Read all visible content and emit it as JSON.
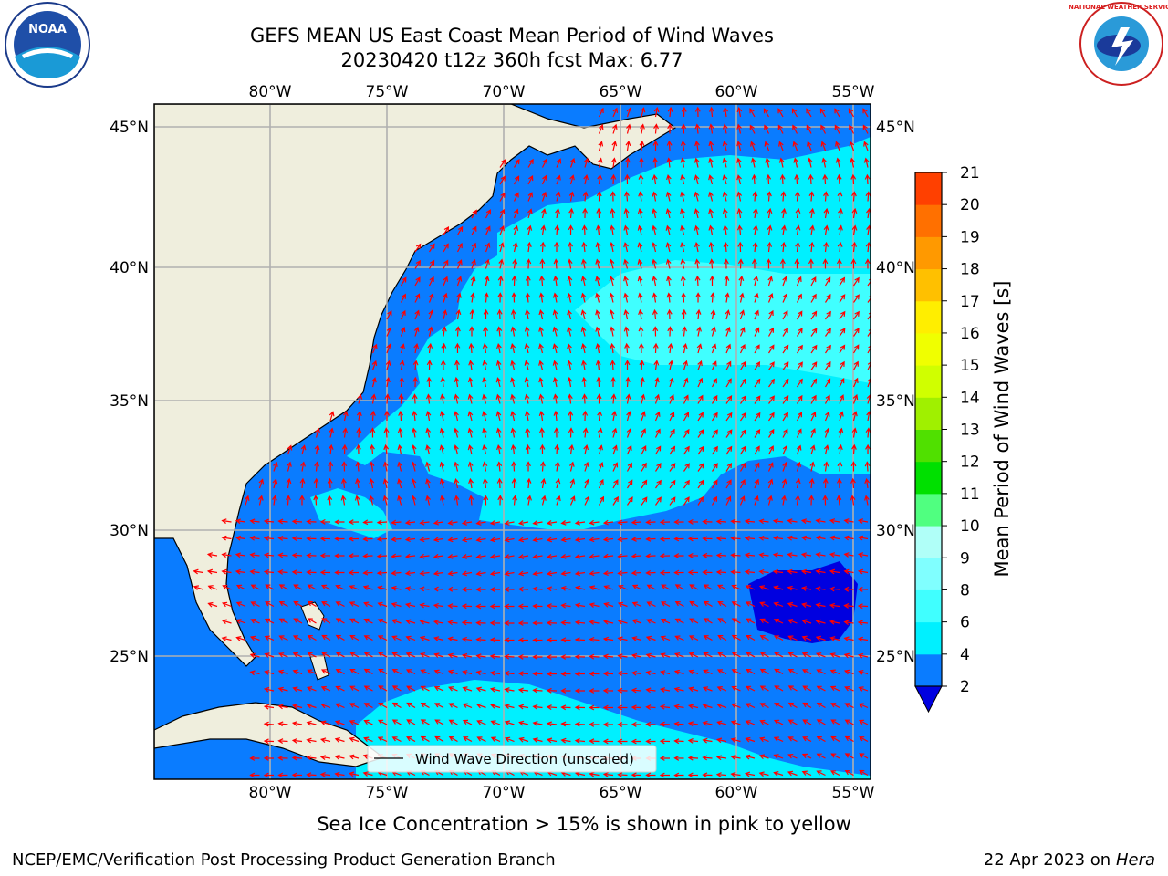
{
  "title_line1": "GEFS MEAN US East Coast Mean Period of Wind Waves",
  "title_line2": "20230420 t12z 360h fcst   Max: 6.77",
  "subtitle": "Sea Ice Concentration > 15% is shown in pink to yellow",
  "footer_left": "NCEP/EMC/Verification Post Processing Product Generation Branch",
  "footer_date": "22 Apr 2023 on ",
  "footer_host": "Hera",
  "legend_label": "Wind Wave Direction (unscaled)",
  "colorbar_label": "Mean Period of Wind Waves [s]",
  "logo_left": "NOAA",
  "logo_right": "NATIONAL WEATHER SERVICE",
  "lon_labels": [
    "80°W",
    "75°W",
    "70°W",
    "65°W",
    "60°W",
    "55°W"
  ],
  "lat_labels": [
    "45°N",
    "40°N",
    "35°N",
    "30°N",
    "25°N"
  ],
  "colorbar_ticks": [
    "2",
    "4",
    "6",
    "8",
    "9",
    "10",
    "11",
    "12",
    "13",
    "14",
    "15",
    "16",
    "17",
    "18",
    "19",
    "20",
    "21"
  ],
  "colorbar_colors": [
    "#0a7cff",
    "#00f0ff",
    "#40ffff",
    "#80ffff",
    "#b0fff8",
    "#50ff80",
    "#00e000",
    "#50e000",
    "#a0f000",
    "#d0ff00",
    "#f0ff00",
    "#ffee00",
    "#ffc000",
    "#ff9900",
    "#ff7000",
    "#ff4000",
    "#ff1000",
    "#ff0000"
  ],
  "colors": {
    "land": "#efeedd",
    "ocean_low": "#0a7cff",
    "ocean_mid": "#00f0ff",
    "ocean_high": "#40ffff",
    "ocean_min": "#0000e0",
    "arrow": "#ff0000",
    "grid": "#b0b0b0"
  }
}
